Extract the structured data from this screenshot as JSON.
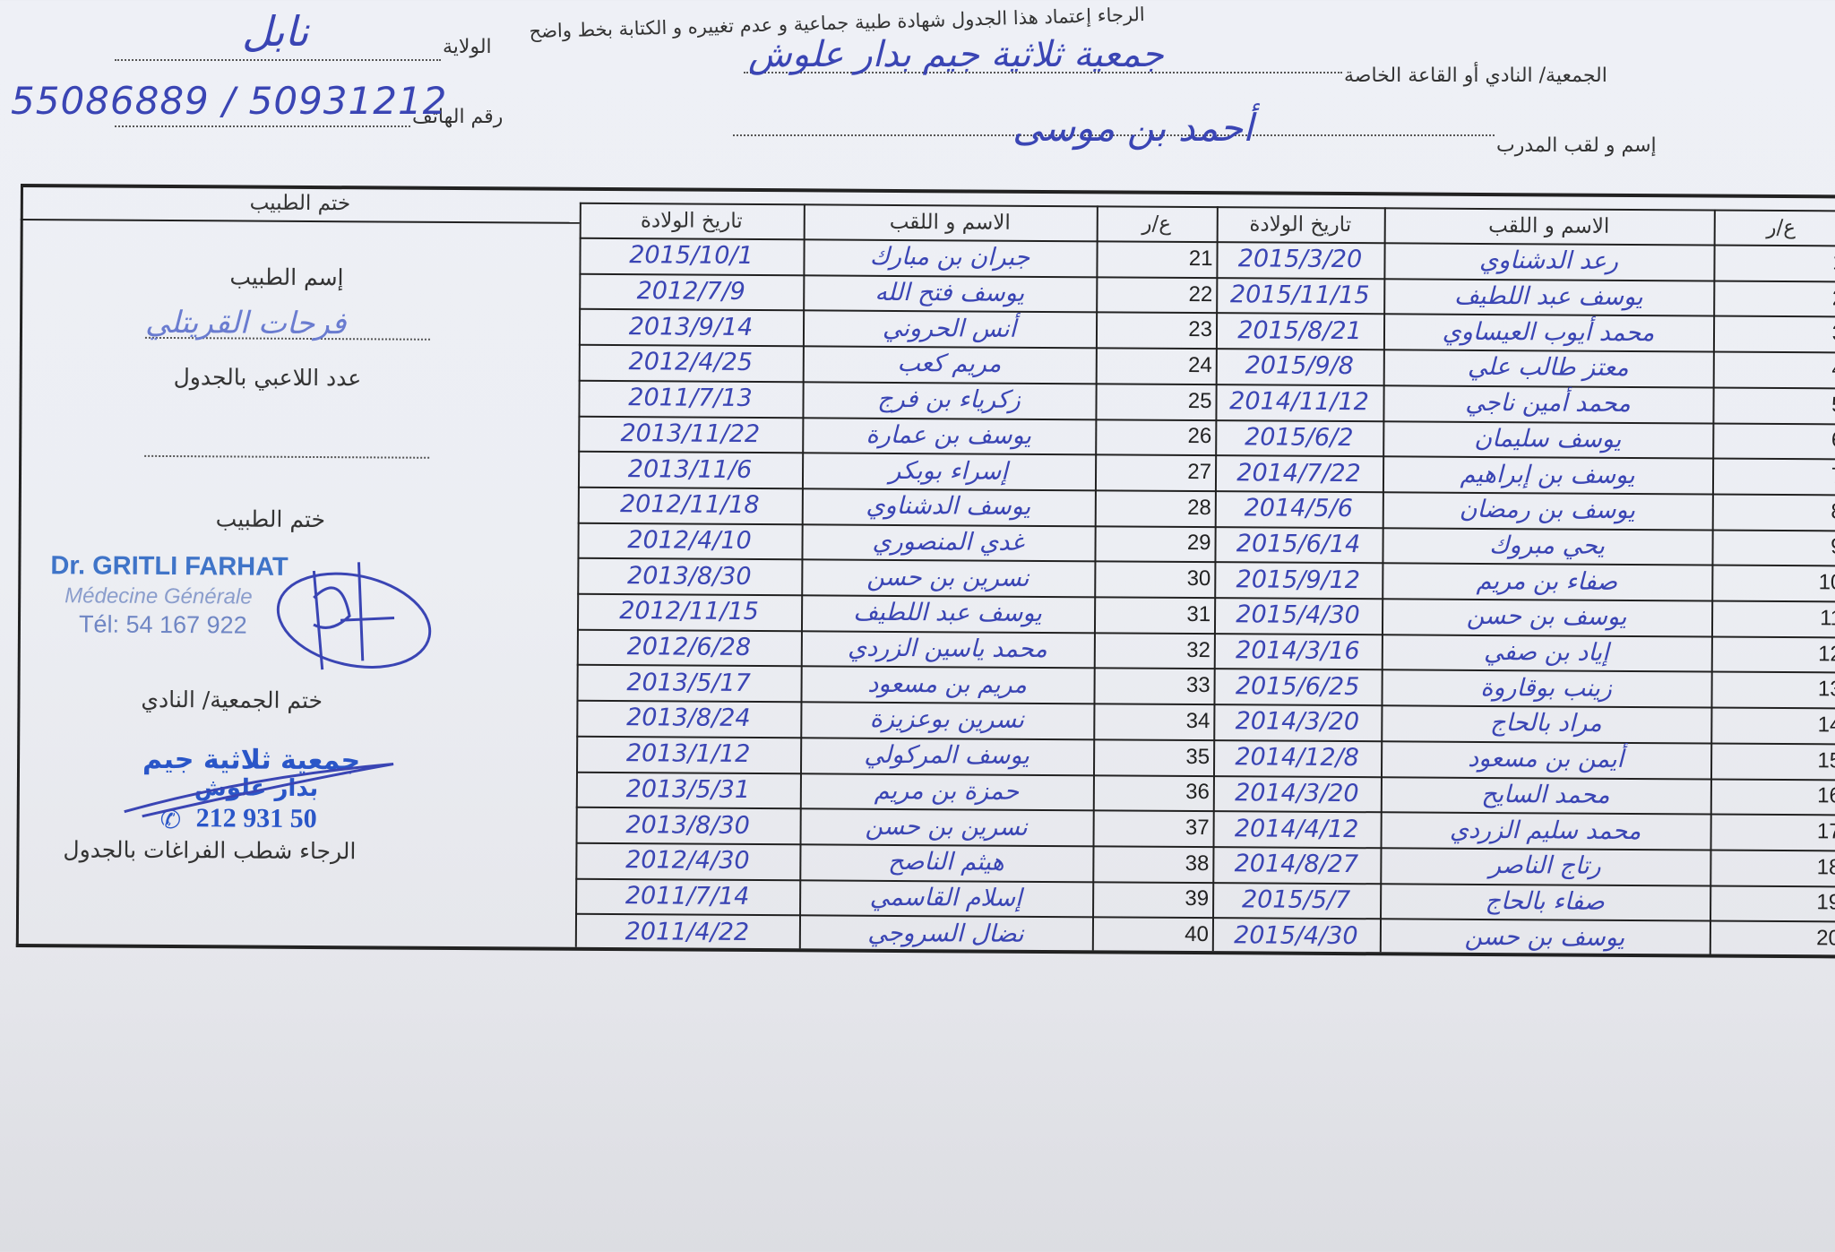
{
  "header": {
    "instruction": "الرجاء إعتماد هذا الجدول شهادة طبية جماعية و عدم تغييره و الكتابة بخط واضح",
    "state_label": "الولاية",
    "state_value": "نابل",
    "phone_label": "رقم الهاتف",
    "phone_value": "55086889 / 50931212",
    "club_label": "الجمعية/ النادي أو القاعة الخاصة",
    "club_value": "جمعية ثلاثية جيم بدار علوش",
    "coach_label": "إسم و لقب المدرب",
    "coach_value": "أحمد بن موسى"
  },
  "columns": {
    "number": "ع/ر",
    "name": "الاسم و اللقب",
    "birthdate": "تاريخ الولادة"
  },
  "right_table": {
    "rows": [
      {
        "number": "1",
        "name": "رعد الدشناوي",
        "birthdate": "2015/3/20"
      },
      {
        "number": "2",
        "name": "يوسف عبد اللطيف",
        "birthdate": "2015/11/15"
      },
      {
        "number": "3",
        "name": "محمد أيوب العيساوي",
        "birthdate": "2015/8/21"
      },
      {
        "number": "4",
        "name": "معتز طالب علي",
        "birthdate": "2015/9/8"
      },
      {
        "number": "5",
        "name": "محمد أمين ناجي",
        "birthdate": "2014/11/12"
      },
      {
        "number": "6",
        "name": "يوسف سليمان",
        "birthdate": "2015/6/2"
      },
      {
        "number": "7",
        "name": "يوسف بن إبراهيم",
        "birthdate": "2014/7/22"
      },
      {
        "number": "8",
        "name": "يوسف بن رمضان",
        "birthdate": "2014/5/6"
      },
      {
        "number": "9",
        "name": "يحي مبروك",
        "birthdate": "2015/6/14"
      },
      {
        "number": "10",
        "name": "صفاء بن مريم",
        "birthdate": "2015/9/12"
      },
      {
        "number": "11",
        "name": "يوسف بن حسن",
        "birthdate": "2015/4/30"
      },
      {
        "number": "12",
        "name": "إياد بن صفي",
        "birthdate": "2014/3/16"
      },
      {
        "number": "13",
        "name": "زينب بوقاروة",
        "birthdate": "2015/6/25"
      },
      {
        "number": "14",
        "name": "مراد بالحاج",
        "birthdate": "2014/3/20"
      },
      {
        "number": "15",
        "name": "أيمن بن مسعود",
        "birthdate": "2014/12/8"
      },
      {
        "number": "16",
        "name": "محمد السايح",
        "birthdate": "2014/3/20"
      },
      {
        "number": "17",
        "name": "محمد سليم الزردي",
        "birthdate": "2014/4/12"
      },
      {
        "number": "18",
        "name": "رتاج الناصر",
        "birthdate": "2014/8/27"
      },
      {
        "number": "19",
        "name": "صفاء بالحاج",
        "birthdate": "2015/5/7"
      },
      {
        "number": "20",
        "name": "يوسف بن حسن",
        "birthdate": "2015/4/30"
      }
    ]
  },
  "left_table": {
    "rows": [
      {
        "number": "21",
        "name": "جبران بن مبارك",
        "birthdate": "2015/10/1"
      },
      {
        "number": "22",
        "name": "يوسف فتح الله",
        "birthdate": "2012/7/9"
      },
      {
        "number": "23",
        "name": "أنس الحروني",
        "birthdate": "2013/9/14"
      },
      {
        "number": "24",
        "name": "مريم كعب",
        "birthdate": "2012/4/25"
      },
      {
        "number": "25",
        "name": "زكرياء بن فرج",
        "birthdate": "2011/7/13"
      },
      {
        "number": "26",
        "name": "يوسف بن عمارة",
        "birthdate": "2013/11/22"
      },
      {
        "number": "27",
        "name": "إسراء بوبكر",
        "birthdate": "2013/11/6"
      },
      {
        "number": "28",
        "name": "يوسف الدشناوي",
        "birthdate": "2012/11/18"
      },
      {
        "number": "29",
        "name": "غدي المنصوري",
        "birthdate": "2012/4/10"
      },
      {
        "number": "30",
        "name": "نسرين بن حسن",
        "birthdate": "2013/8/30"
      },
      {
        "number": "31",
        "name": "يوسف عبد اللطيف",
        "birthdate": "2012/11/15"
      },
      {
        "number": "32",
        "name": "محمد ياسين الزردي",
        "birthdate": "2012/6/28"
      },
      {
        "number": "33",
        "name": "مريم بن مسعود",
        "birthdate": "2013/5/17"
      },
      {
        "number": "34",
        "name": "نسرين بوعزيزة",
        "birthdate": "2013/8/24"
      },
      {
        "number": "35",
        "name": "يوسف المركولي",
        "birthdate": "2013/1/12"
      },
      {
        "number": "36",
        "name": "حمزة بن مريم",
        "birthdate": "2013/5/31"
      },
      {
        "number": "37",
        "name": "نسرين بن حسن",
        "birthdate": "2013/8/30"
      },
      {
        "number": "38",
        "name": "هيثم الناصح",
        "birthdate": "2012/4/30"
      },
      {
        "number": "39",
        "name": "إسلام القاسمي",
        "birthdate": "2011/7/14"
      },
      {
        "number": "40",
        "name": "نضال السروجي",
        "birthdate": "2011/4/22"
      }
    ]
  },
  "side_panel": {
    "doctor_stamp_header": "ختم الطبيب",
    "doctor_name_label": "إسم الطبيب",
    "doctor_name_value": "فرحات القريتلي",
    "player_count_label": "عدد اللاعبي بالجدول",
    "doctor_stamp_label": "ختم الطبيب",
    "doctor_stamp": {
      "name": "Dr. GRITLI FARHAT",
      "specialty": "Médecine Générale",
      "phone": "Tél: 54 167 922"
    },
    "club_stamp_label": "ختم الجمعية/ النادي",
    "club_stamp": {
      "line1": "جمعية ثلاثية جيم",
      "line2": "بدار علوش",
      "phone": "50 931 212",
      "phone_icon": "whatsapp-icon"
    },
    "footer_note": "الرجاء شطب الفراغات بالجدول"
  },
  "colors": {
    "ink": "#3a45b4",
    "doctor_stamp": "#3f74c8",
    "club_stamp": "#2a56c8",
    "paper": "#eef0f6"
  }
}
